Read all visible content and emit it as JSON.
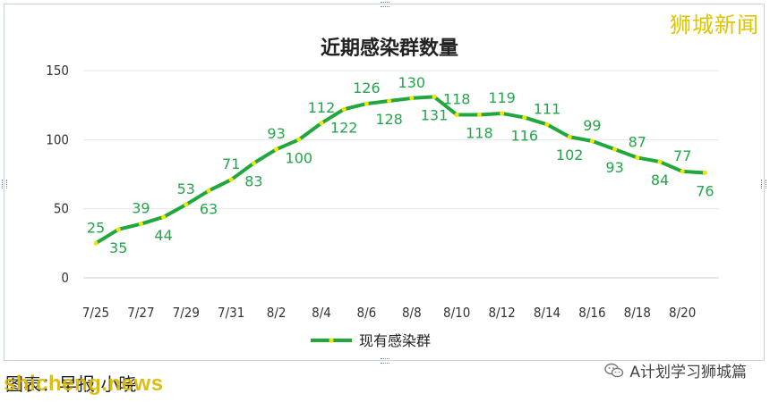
{
  "watermark": "狮城新闻",
  "credit_text": "图表：早报·小晓",
  "credit_overlay": "shicheng.news",
  "wechat_account": "A计划学习狮城篇",
  "colors": {
    "line": "#20a83c",
    "marker": "#f2e600",
    "label": "#22a64a"
  },
  "chart_data": {
    "type": "line",
    "title": "近期感染群数量",
    "x": [
      "7/25",
      "7/26",
      "7/27",
      "7/28",
      "7/29",
      "7/30",
      "7/31",
      "8/1",
      "8/2",
      "8/3",
      "8/4",
      "8/5",
      "8/6",
      "8/7",
      "8/8",
      "8/9",
      "8/10",
      "8/11",
      "8/12",
      "8/13",
      "8/14",
      "8/15",
      "8/16",
      "8/17",
      "8/18",
      "8/19",
      "8/20",
      "8/21"
    ],
    "x_tick_labels": [
      "7/25",
      "7/27",
      "7/29",
      "7/31",
      "8/2",
      "8/4",
      "8/6",
      "8/8",
      "8/10",
      "8/12",
      "8/14",
      "8/16",
      "8/18",
      "8/20"
    ],
    "series": [
      {
        "name": "现有感染群",
        "values": [
          25,
          35,
          39,
          44,
          53,
          63,
          71,
          83,
          93,
          100,
          112,
          122,
          126,
          128,
          130,
          131,
          118,
          118,
          119,
          116,
          111,
          102,
          99,
          93,
          87,
          84,
          77,
          76
        ]
      }
    ],
    "ylim": [
      0,
      150
    ],
    "y_ticks": [
      0,
      50,
      100,
      150
    ],
    "grid": true,
    "legend": "bottom"
  }
}
